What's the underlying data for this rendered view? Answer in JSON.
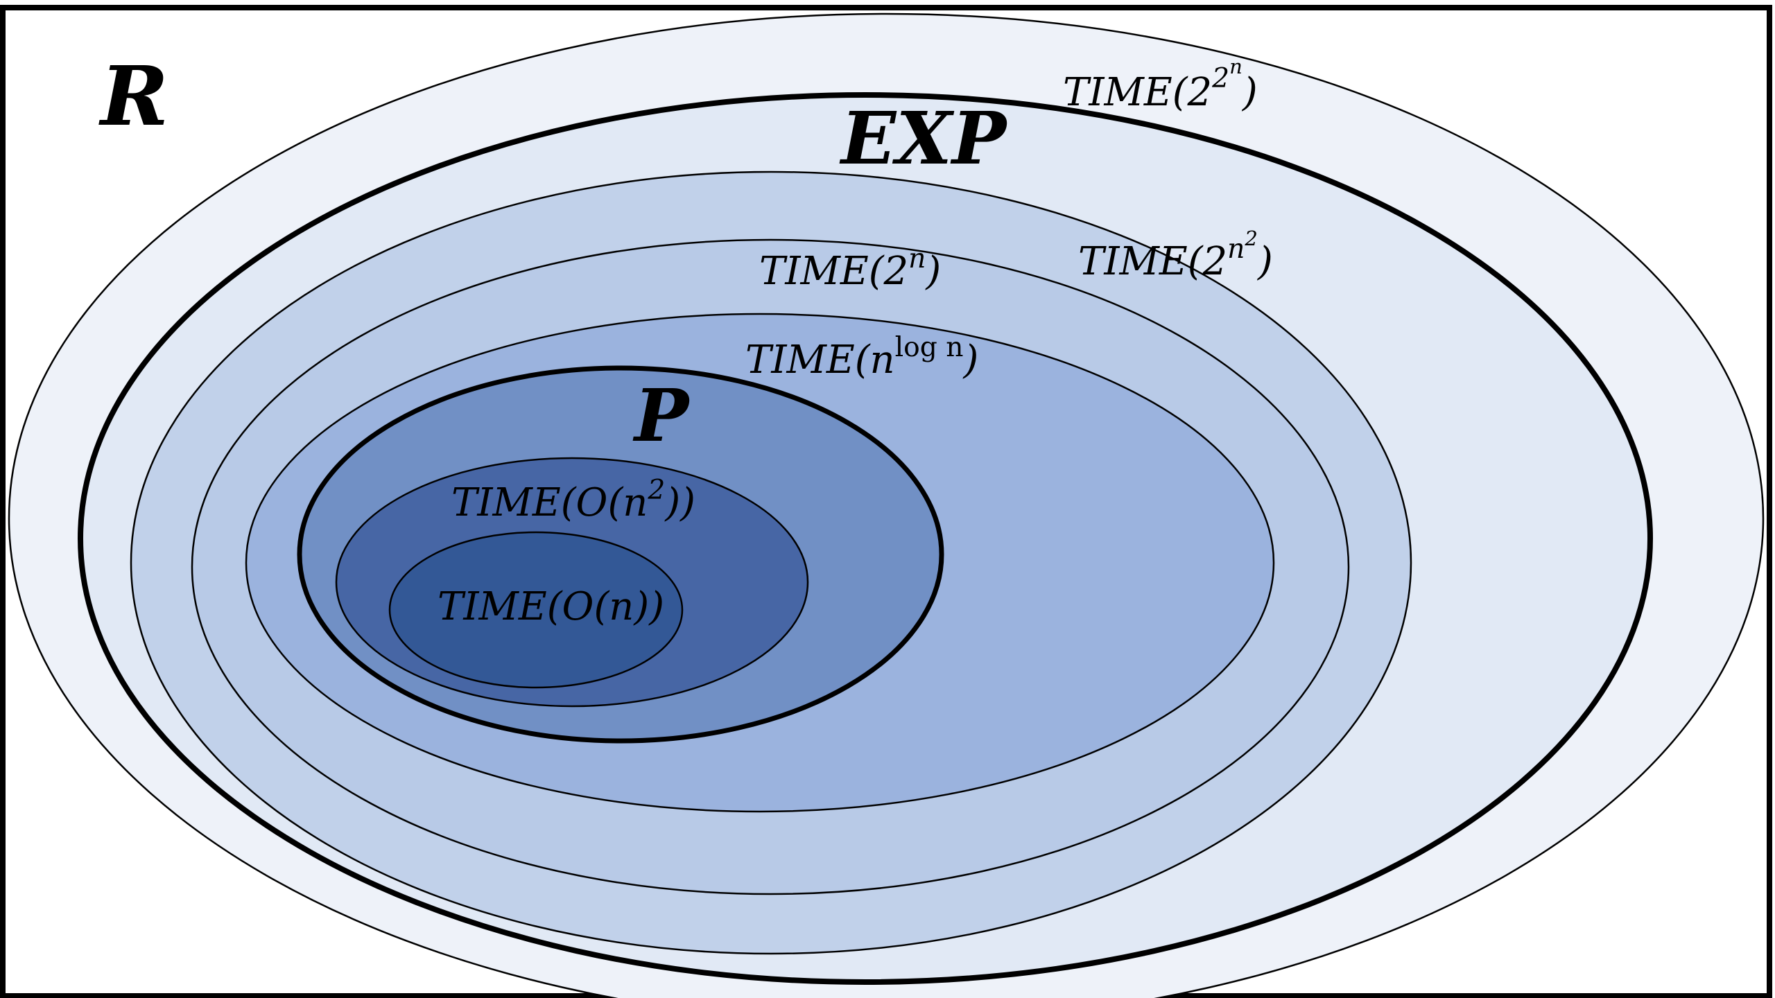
{
  "diagram": {
    "title": "",
    "frame_color": "#000000",
    "classes": [
      {
        "id": "R",
        "text": "R",
        "fill": "#ffffff",
        "kind": "class"
      },
      {
        "id": "time_2_2n",
        "text_parts": [
          "TIME(2",
          "2",
          "n",
          ")"
        ],
        "fill": "#eef2f9",
        "kind": "time"
      },
      {
        "id": "EXP",
        "text": "EXP",
        "fill": "#e1e9f5",
        "kind": "class"
      },
      {
        "id": "time_2_n2",
        "text_parts": [
          "TIME(2",
          "n",
          "2",
          ")"
        ],
        "fill": "#c1d1ea",
        "kind": "time"
      },
      {
        "id": "time_2_n",
        "text_parts": [
          "TIME(2",
          "n",
          ")"
        ],
        "fill": "#b8cae7",
        "kind": "time"
      },
      {
        "id": "time_nlogn",
        "text_parts": [
          "TIME(n",
          "log n",
          ")"
        ],
        "fill": "#9bb3de",
        "kind": "time"
      },
      {
        "id": "P",
        "text": "P",
        "fill": "#7190c5",
        "kind": "class"
      },
      {
        "id": "time_n2",
        "text_parts": [
          "TIME(O(n",
          "2",
          "))"
        ],
        "fill": "#4766a5",
        "kind": "time"
      },
      {
        "id": "time_n",
        "text": "TIME(O(n))",
        "fill": "#335896",
        "kind": "time"
      }
    ],
    "relation": "nested containment: TIME(O(n)) ⊂ TIME(O(n^2)) ⊂ P ⊂ TIME(n^log n) ⊂ TIME(2^n) ⊂ TIME(2^(n^2)) ⊂ EXP ⊂ TIME(2^(2^n)) ⊂ R"
  }
}
